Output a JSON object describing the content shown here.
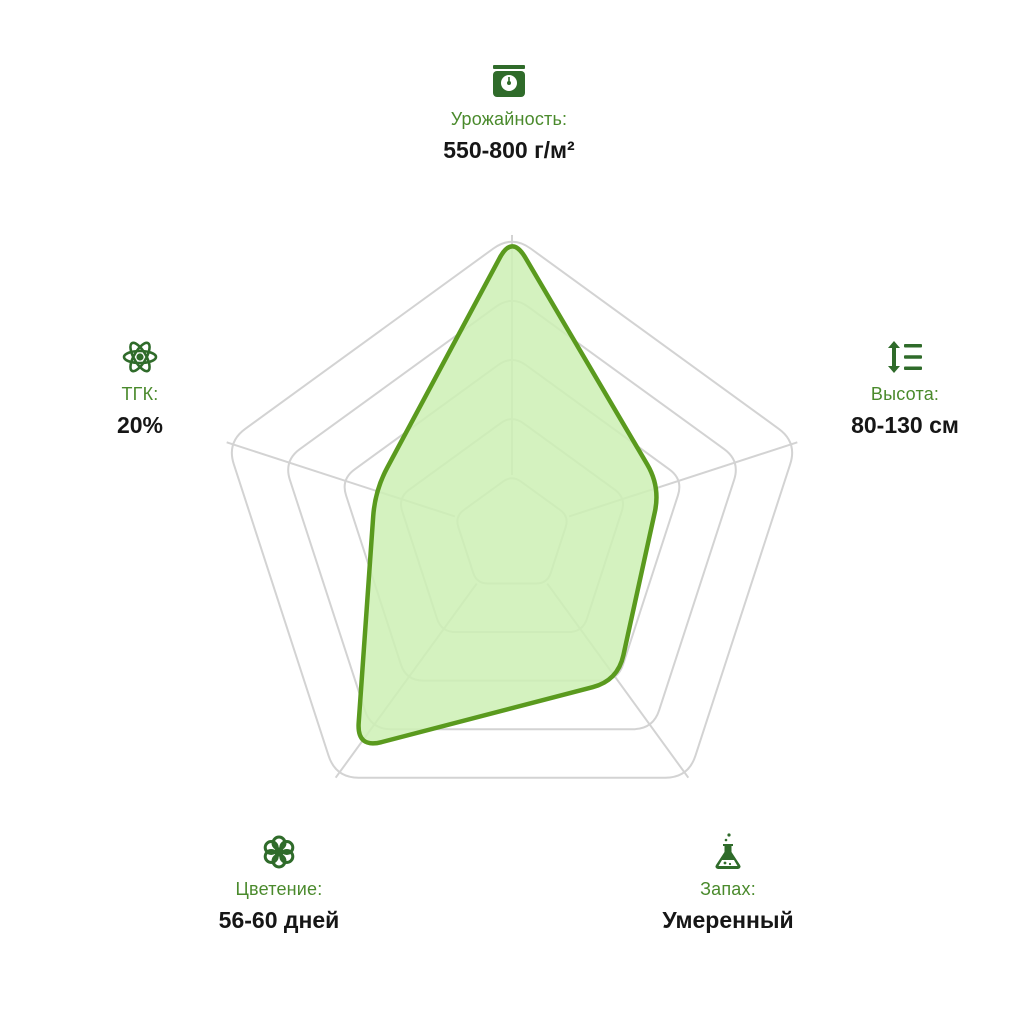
{
  "chart_data": {
    "type": "radar",
    "levels": 5,
    "axes": [
      {
        "key": "yield",
        "label": "Урожайность:",
        "value_text": "550-800 г/м²",
        "icon": "scale-icon",
        "score": 5.0
      },
      {
        "key": "height",
        "label": "Высота:",
        "value_text": "80-130 см",
        "icon": "height-icon",
        "score": 2.6
      },
      {
        "key": "smell",
        "label": "Запах:",
        "value_text": "Умеренный",
        "icon": "flask-icon",
        "score": 3.0
      },
      {
        "key": "flowering",
        "label": "Цветение:",
        "value_text": "56-60 дней",
        "icon": "flower-icon",
        "score": 4.4
      },
      {
        "key": "thc",
        "label": "ТГК:",
        "value_text": "20%",
        "icon": "atom-icon",
        "score": 2.4
      }
    ]
  },
  "colors": {
    "grid": "#d3d3d3",
    "fill": "#cdf0b4",
    "stroke": "#5a9a1e",
    "label": "#4a8a2c",
    "value": "#161616",
    "icon": "#2f6b2a"
  }
}
